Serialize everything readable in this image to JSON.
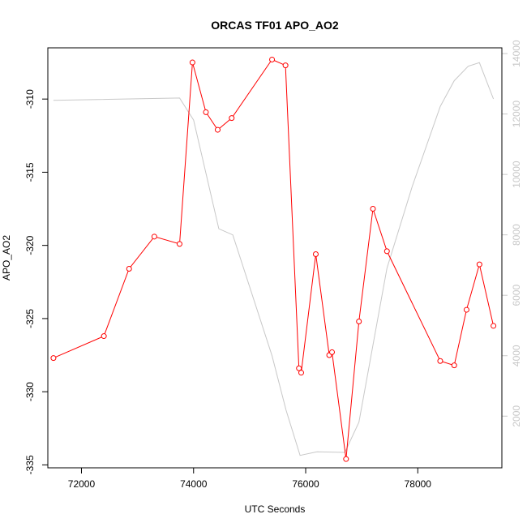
{
  "chart_data": {
    "type": "line",
    "title": "ORCAS TF01 APO_AO2",
    "xlabel": "UTC Seconds",
    "ylabel": "APO_AO2",
    "xlim": [
      71400,
      79500
    ],
    "ylim": [
      -335.2,
      -306.5
    ],
    "y2lim": [
      290,
      14190
    ],
    "x_ticks": [
      72000,
      74000,
      76000,
      78000
    ],
    "x_tick_labels": [
      "72000",
      "74000",
      "76000",
      "78000"
    ],
    "y_ticks": [
      -310,
      -315,
      -320,
      -325,
      -330,
      -335
    ],
    "y_tick_labels": [
      "-310",
      "-315",
      "-320",
      "-325",
      "-330",
      "-335"
    ],
    "y2_ticks": [
      2000,
      4000,
      6000,
      8000,
      10000,
      12000,
      14000
    ],
    "y2_tick_labels": [
      "2000",
      "4000",
      "6000",
      "8000",
      "10000",
      "12000",
      "14000"
    ],
    "grid": false,
    "series": [
      {
        "color": "#ff0000",
        "axis": "left",
        "marker": "open-circle",
        "x": [
          71500,
          72400,
          72850,
          73300,
          73750,
          73980,
          74220,
          74430,
          74680,
          75400,
          75640,
          75880,
          75920,
          76180,
          76420,
          76470,
          76720,
          76950,
          77200,
          77450,
          78400,
          78650,
          78870,
          79100,
          79350
        ],
        "y": [
          -327.7,
          -326.2,
          -321.6,
          -319.4,
          -319.9,
          -307.5,
          -310.9,
          -312.1,
          -311.3,
          -307.3,
          -307.7,
          -328.4,
          -328.7,
          -320.6,
          -327.5,
          -327.3,
          -334.6,
          -325.2,
          -317.5,
          -320.4,
          -327.9,
          -328.2,
          -324.4,
          -321.3,
          -325.5
        ]
      },
      {
        "color": "#c8c8c8",
        "axis": "right",
        "marker": "none",
        "x": [
          71500,
          73750,
          74000,
          74450,
          74700,
          75400,
          75650,
          75900,
          76200,
          76700,
          76950,
          77450,
          77900,
          78400,
          78650,
          78900,
          79100,
          79350
        ],
        "y": [
          12450,
          12530,
          11800,
          8200,
          8000,
          4000,
          2200,
          700,
          820,
          800,
          1800,
          6900,
          9600,
          12250,
          13100,
          13580,
          13700,
          12500
        ]
      }
    ]
  }
}
